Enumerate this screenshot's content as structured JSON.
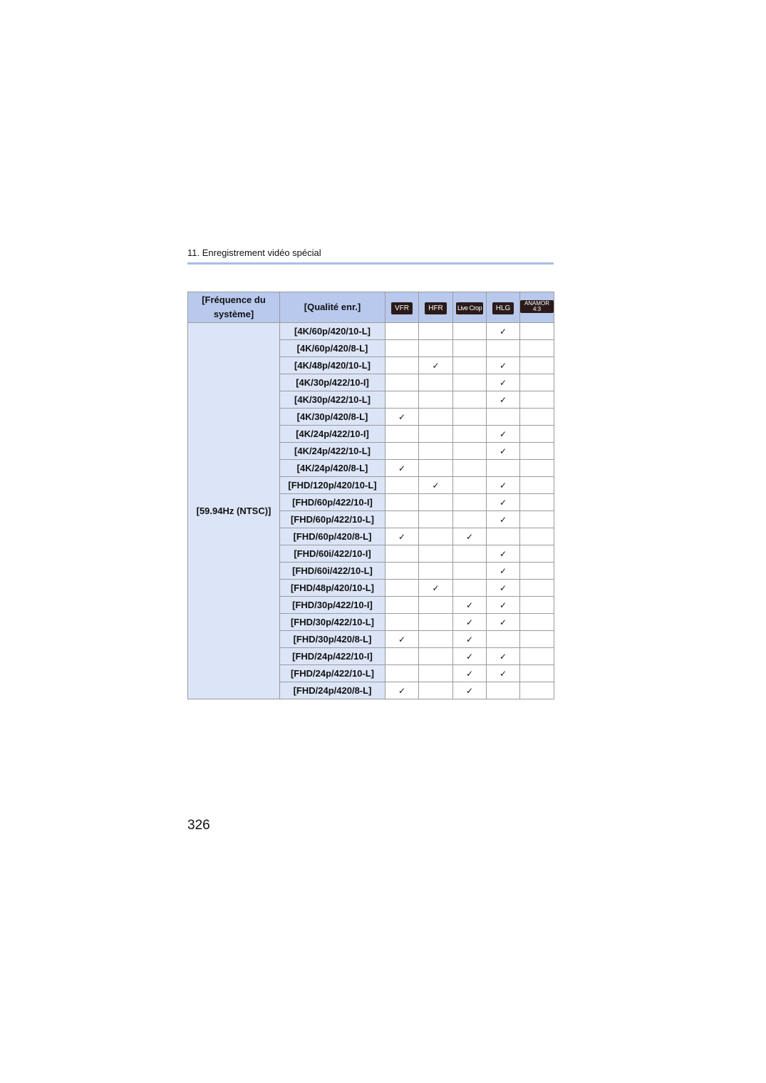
{
  "header": {
    "section": "11. Enregistrement vidéo spécial"
  },
  "table": {
    "col_system": "[Fréquence du système]",
    "col_quality": "[Qualité enr.]",
    "feature_cols": [
      "VFR",
      "HFR",
      "Live Crop",
      "HLG",
      "ANAMOR 4:3"
    ],
    "system_value": "[59.94Hz (NTSC)]",
    "check_glyph": "✓",
    "rows": [
      {
        "q": "[4K/60p/420/10-L]",
        "c": [
          false,
          false,
          false,
          true,
          false
        ]
      },
      {
        "q": "[4K/60p/420/8-L]",
        "c": [
          false,
          false,
          false,
          false,
          false
        ]
      },
      {
        "q": "[4K/48p/420/10-L]",
        "c": [
          false,
          true,
          false,
          true,
          false
        ]
      },
      {
        "q": "[4K/30p/422/10-I]",
        "c": [
          false,
          false,
          false,
          true,
          false
        ]
      },
      {
        "q": "[4K/30p/422/10-L]",
        "c": [
          false,
          false,
          false,
          true,
          false
        ]
      },
      {
        "q": "[4K/30p/420/8-L]",
        "c": [
          true,
          false,
          false,
          false,
          false
        ]
      },
      {
        "q": "[4K/24p/422/10-I]",
        "c": [
          false,
          false,
          false,
          true,
          false
        ]
      },
      {
        "q": "[4K/24p/422/10-L]",
        "c": [
          false,
          false,
          false,
          true,
          false
        ]
      },
      {
        "q": "[4K/24p/420/8-L]",
        "c": [
          true,
          false,
          false,
          false,
          false
        ]
      },
      {
        "q": "[FHD/120p/420/10-L]",
        "c": [
          false,
          true,
          false,
          true,
          false
        ]
      },
      {
        "q": "[FHD/60p/422/10-I]",
        "c": [
          false,
          false,
          false,
          true,
          false
        ]
      },
      {
        "q": "[FHD/60p/422/10-L]",
        "c": [
          false,
          false,
          false,
          true,
          false
        ]
      },
      {
        "q": "[FHD/60p/420/8-L]",
        "c": [
          true,
          false,
          true,
          false,
          false
        ]
      },
      {
        "q": "[FHD/60i/422/10-I]",
        "c": [
          false,
          false,
          false,
          true,
          false
        ]
      },
      {
        "q": "[FHD/60i/422/10-L]",
        "c": [
          false,
          false,
          false,
          true,
          false
        ]
      },
      {
        "q": "[FHD/48p/420/10-L]",
        "c": [
          false,
          true,
          false,
          true,
          false
        ]
      },
      {
        "q": "[FHD/30p/422/10-I]",
        "c": [
          false,
          false,
          true,
          true,
          false
        ]
      },
      {
        "q": "[FHD/30p/422/10-L]",
        "c": [
          false,
          false,
          true,
          true,
          false
        ]
      },
      {
        "q": "[FHD/30p/420/8-L]",
        "c": [
          true,
          false,
          true,
          false,
          false
        ]
      },
      {
        "q": "[FHD/24p/422/10-I]",
        "c": [
          false,
          false,
          true,
          true,
          false
        ]
      },
      {
        "q": "[FHD/24p/422/10-L]",
        "c": [
          false,
          false,
          true,
          true,
          false
        ]
      },
      {
        "q": "[FHD/24p/420/8-L]",
        "c": [
          true,
          false,
          true,
          false,
          false
        ]
      }
    ]
  },
  "footer": {
    "page_number": "326"
  }
}
